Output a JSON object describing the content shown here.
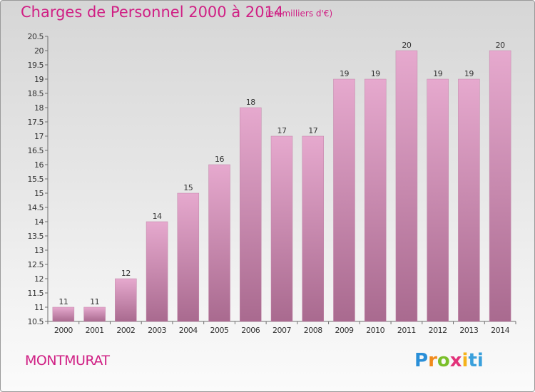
{
  "title": "Charges de Personnel 2000 à 2014",
  "subtitle": "(en milliers d'€)",
  "commune": "MONTMURAT",
  "logo": {
    "text": "Proxiti"
  },
  "colors": {
    "accent": "#d01f84",
    "bar_top": "#e6a9ce",
    "bar_bottom": "#a96a8f"
  },
  "chart_data": {
    "type": "bar",
    "title": "Charges de Personnel 2000 à 2014",
    "subtitle": "(en milliers d'€)",
    "xlabel": "",
    "ylabel": "",
    "categories": [
      "2000",
      "2001",
      "2002",
      "2003",
      "2004",
      "2005",
      "2006",
      "2007",
      "2008",
      "2009",
      "2010",
      "2011",
      "2012",
      "2013",
      "2014"
    ],
    "values": [
      11,
      11,
      12,
      14,
      15,
      16,
      18,
      17,
      17,
      19,
      19,
      20,
      19,
      19,
      20
    ],
    "data_labels": [
      "11",
      "11",
      "12",
      "14",
      "15",
      "16",
      "18",
      "17",
      "17",
      "19",
      "19",
      "20",
      "19",
      "19",
      "20"
    ],
    "ylim": [
      10.5,
      20.5
    ],
    "yticks": [
      "10.5",
      "11",
      "11.5",
      "12",
      "12.5",
      "13",
      "13.5",
      "14",
      "14.5",
      "15",
      "15.5",
      "16",
      "16.5",
      "17",
      "17.5",
      "18",
      "18.5",
      "19",
      "19.5",
      "20",
      "20.5"
    ],
    "grid": false,
    "legend": "none"
  }
}
